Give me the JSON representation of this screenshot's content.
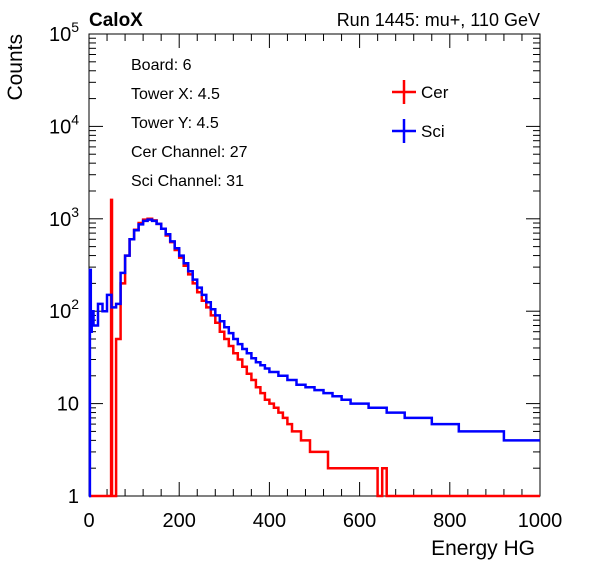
{
  "header": {
    "left_title": "CaloX",
    "right_title": "Run 1445: mu+, 110 GeV"
  },
  "info": {
    "board": "Board: 6",
    "tower_x": "Tower X: 4.5",
    "tower_y": "Tower Y: 4.5",
    "cer_channel": "Cer Channel: 27",
    "sci_channel": "Sci Channel: 31"
  },
  "chart_data": {
    "type": "line",
    "title": "",
    "xlabel": "Energy HG",
    "ylabel": "Counts",
    "xlim": [
      0,
      1000
    ],
    "ylim": [
      1,
      100000
    ],
    "y_scale": "log",
    "grid": false,
    "legend_position": "top-right",
    "x_ticks": [
      "0",
      "200",
      "400",
      "600",
      "800",
      "1000"
    ],
    "y_ticks": [
      {
        "base": "1",
        "exp": "",
        "value": 1
      },
      {
        "base": "10",
        "exp": "",
        "value": 10
      },
      {
        "base": "10",
        "exp": "2",
        "value": 100
      },
      {
        "base": "10",
        "exp": "3",
        "value": 1000
      },
      {
        "base": "10",
        "exp": "4",
        "value": 10000
      },
      {
        "base": "10",
        "exp": "5",
        "value": 100000
      }
    ],
    "series": [
      {
        "name": "Cer",
        "color": "#ff0000",
        "x": [
          0,
          10,
          20,
          30,
          40,
          48,
          49,
          50,
          51,
          52,
          60,
          70,
          80,
          90,
          100,
          110,
          120,
          130,
          140,
          150,
          160,
          170,
          180,
          190,
          200,
          210,
          220,
          230,
          240,
          250,
          260,
          270,
          280,
          290,
          300,
          310,
          320,
          330,
          340,
          350,
          360,
          370,
          380,
          390,
          400,
          410,
          420,
          430,
          440,
          450,
          460,
          470,
          480,
          490,
          500,
          510,
          520,
          530,
          540,
          550,
          560,
          570,
          580,
          590,
          600,
          610,
          620,
          630,
          640,
          650,
          660,
          670,
          680,
          690,
          700,
          710,
          720,
          730,
          740,
          750,
          760,
          770,
          780,
          790,
          800,
          850,
          900,
          950,
          1000
        ],
        "y": [
          1,
          1,
          1,
          1,
          1,
          1,
          1600,
          1600,
          1,
          1,
          50,
          200,
          400,
          600,
          760,
          900,
          980,
          1000,
          960,
          880,
          780,
          660,
          560,
          460,
          380,
          310,
          250,
          200,
          160,
          130,
          110,
          90,
          75,
          60,
          50,
          42,
          35,
          30,
          25,
          21,
          18,
          15,
          13,
          11,
          10,
          9,
          8,
          7,
          6,
          5,
          5,
          4,
          4,
          3,
          3,
          3,
          3,
          2,
          2,
          2,
          2,
          2,
          2,
          2,
          2,
          2,
          2,
          2,
          1,
          2,
          1,
          1,
          1,
          1,
          1,
          1,
          1,
          1,
          1,
          1,
          1,
          1,
          1,
          1,
          1,
          1,
          1,
          1,
          1
        ]
      },
      {
        "name": "Sci",
        "color": "#0000ff",
        "x": [
          0,
          2,
          4,
          6,
          10,
          20,
          30,
          40,
          50,
          60,
          70,
          80,
          90,
          100,
          110,
          120,
          130,
          140,
          150,
          160,
          170,
          180,
          190,
          200,
          210,
          220,
          230,
          240,
          250,
          260,
          270,
          280,
          290,
          300,
          310,
          320,
          330,
          340,
          350,
          360,
          370,
          380,
          390,
          400,
          420,
          440,
          460,
          480,
          500,
          520,
          540,
          560,
          580,
          600,
          620,
          640,
          660,
          680,
          700,
          720,
          740,
          760,
          780,
          800,
          820,
          840,
          860,
          880,
          900,
          920,
          940,
          960,
          980,
          1000
        ],
        "y": [
          1,
          280,
          60,
          100,
          70,
          120,
          100,
          150,
          110,
          120,
          260,
          400,
          600,
          750,
          870,
          950,
          980,
          950,
          880,
          780,
          680,
          570,
          480,
          400,
          330,
          270,
          220,
          180,
          150,
          125,
          105,
          90,
          78,
          67,
          58,
          50,
          44,
          39,
          35,
          31,
          28,
          26,
          24,
          22,
          20,
          18,
          16,
          15,
          14,
          13,
          12,
          11,
          10,
          10,
          9,
          9,
          8,
          8,
          7,
          7,
          7,
          6,
          6,
          6,
          5,
          5,
          5,
          5,
          5,
          4,
          4,
          4,
          4,
          4
        ]
      }
    ]
  }
}
